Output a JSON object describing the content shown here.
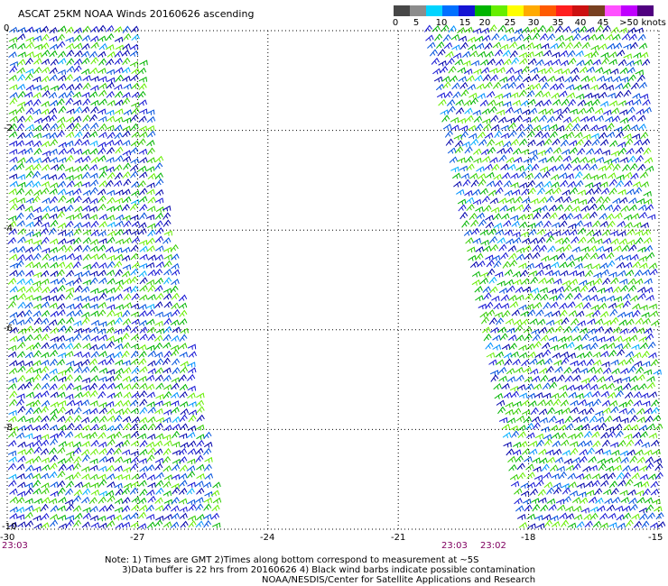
{
  "title": "ASCAT 25KM NOAA Winds 20160626 ascending",
  "colorbar": {
    "colors": [
      "#474747",
      "#8c8c8c",
      "#00d4ff",
      "#0070ff",
      "#1414d4",
      "#00b400",
      "#66ee00",
      "#ffff00",
      "#ffaa00",
      "#ff5a00",
      "#ff1e1e",
      "#cc1010",
      "#784020",
      "#ff50ff",
      "#c000ff",
      "#500080"
    ],
    "labels": [
      "0",
      "5",
      "10",
      "15",
      "20",
      "25",
      "30",
      "35",
      "40",
      "45",
      ">50 knots"
    ]
  },
  "chart_data": {
    "type": "wind-barb-map",
    "lon_range": [
      -30,
      -15
    ],
    "lat_range": [
      -10,
      0
    ],
    "lon_ticks": [
      "-30",
      "-27",
      "-24",
      "-21",
      "-18",
      "-15"
    ],
    "lat_ticks": [
      "0",
      "-2",
      "-4",
      "-6",
      "-8",
      "-10"
    ],
    "grid": true,
    "swaths": [
      {
        "lon_west_top": -30,
        "lon_east_top": -27.1,
        "lon_west_bottom": -30,
        "lon_east_bottom": -25.1,
        "times": [
          "23:03"
        ],
        "dominant_speed_knots": "10-20"
      },
      {
        "lon_west_top": -20.4,
        "lon_east_top": -15.4,
        "lon_west_bottom": -18.2,
        "lon_east_bottom": -15,
        "times": [
          "23:03",
          "23:02"
        ],
        "dominant_speed_knots": "10-20"
      }
    ]
  },
  "time_labels": [
    "23:03",
    "23:03",
    "23:02"
  ],
  "notes": {
    "line1": "Note: 1) Times are GMT 2)Times along bottom correspond to measurement at ~5S",
    "line2": "      3)Data buffer is 22 hrs from 20160626 4) Black wind barbs indicate possible contamination"
  },
  "credit": "NOAA/NESDIS/Center for Satellite Applications and Research"
}
